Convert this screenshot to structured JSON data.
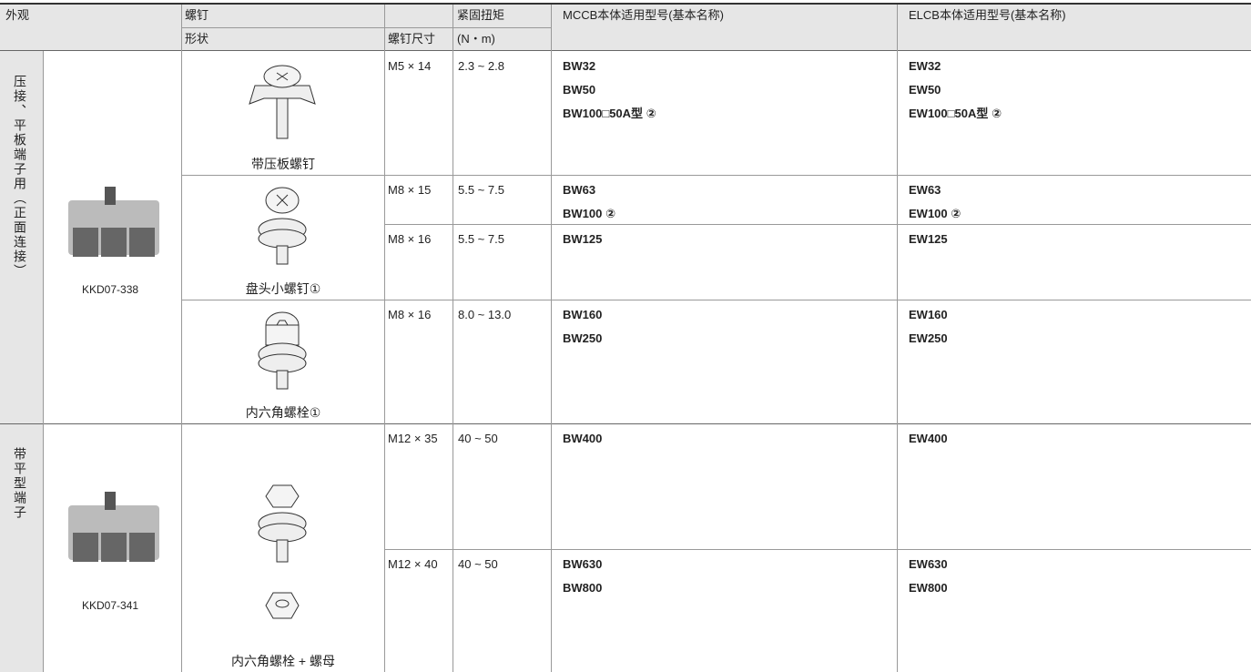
{
  "header": {
    "appearance": "外观",
    "screw": "螺钉",
    "shape": "形状",
    "size": "螺钉尺寸",
    "torque": "紧固扭矩",
    "torque_unit": "(N・m)",
    "mccb": "MCCB本体适用型号(基本名称)",
    "elcb": "ELCB本体适用型号(基本名称)"
  },
  "groups": [
    {
      "label": "压接、平板端子用（正面连接）",
      "image_code": "KKD07-338",
      "shapes": [
        {
          "caption": "带压板螺钉"
        },
        {
          "caption": "盘头小螺钉①"
        },
        {
          "caption": "内六角螺栓①"
        }
      ],
      "rows": [
        {
          "size": "M5 × 14",
          "torque": "2.3 ~ 2.8",
          "mccb": [
            "BW32",
            "BW50",
            "BW100□50A型 ②"
          ],
          "elcb": [
            "EW32",
            "EW50",
            "EW100□50A型 ②"
          ]
        },
        {
          "size": "M8 × 15",
          "torque": "5.5 ~ 7.5",
          "mccb": [
            "BW63",
            "BW100 ②"
          ],
          "elcb": [
            "EW63",
            "EW100 ②"
          ]
        },
        {
          "size": "M8 × 16",
          "torque": "5.5 ~ 7.5",
          "mccb": [
            "BW125"
          ],
          "elcb": [
            "EW125"
          ]
        },
        {
          "size": "M8 × 16",
          "torque": "8.0 ~ 13.0",
          "mccb": [
            "BW160",
            "BW250"
          ],
          "elcb": [
            "EW160",
            "EW250"
          ]
        }
      ]
    },
    {
      "label": "带平型端子",
      "image_code": "KKD07-341",
      "shapes": [
        {
          "caption": "内六角螺栓 + 螺母"
        }
      ],
      "rows": [
        {
          "size": "M12 × 35",
          "torque": "40 ~ 50",
          "mccb": [
            "BW400"
          ],
          "elcb": [
            "EW400"
          ]
        },
        {
          "size": "M12 × 40",
          "torque": "40 ~ 50",
          "mccb": [
            "BW630",
            "BW800"
          ],
          "elcb": [
            "EW630",
            "EW800"
          ]
        }
      ]
    }
  ]
}
